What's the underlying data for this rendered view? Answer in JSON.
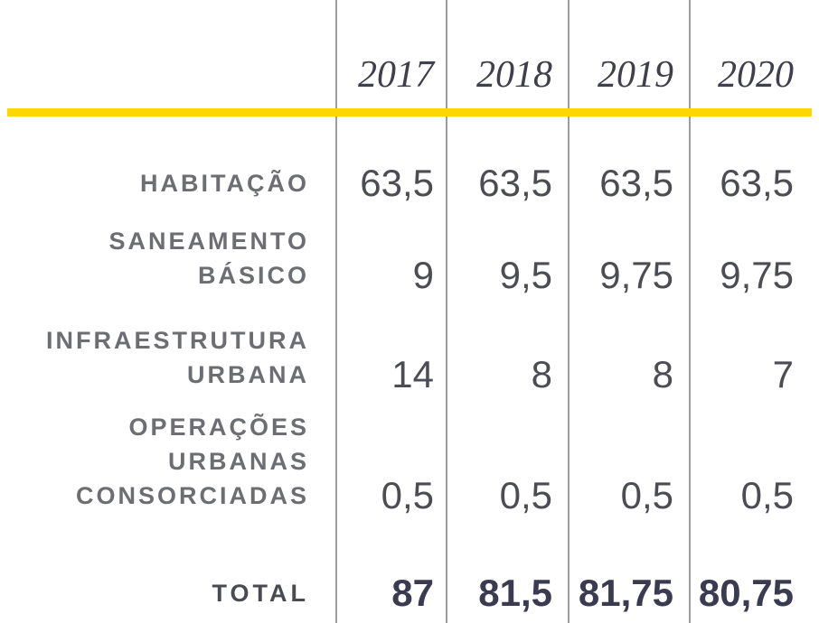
{
  "table": {
    "col_headers": [
      "2017",
      "2018",
      "2019",
      "2020"
    ],
    "rows": [
      {
        "label_lines": [
          "HABITAÇÃO"
        ],
        "values": [
          "63,5",
          "63,5",
          "63,5",
          "63,5"
        ]
      },
      {
        "label_lines": [
          "SANEAMENTO",
          "BÁSICO"
        ],
        "values": [
          "9",
          "9,5",
          "9,75",
          "9,75"
        ]
      },
      {
        "label_lines": [
          "INFRAESTRUTURA",
          "URBANA"
        ],
        "values": [
          "14",
          "8",
          "8",
          "7"
        ]
      },
      {
        "label_lines": [
          "OPERAÇÕES",
          "URBANAS",
          "CONSORCIADAS"
        ],
        "values": [
          "0,5",
          "0,5",
          "0,5",
          "0,5"
        ]
      },
      {
        "label_lines": [
          "TOTAL"
        ],
        "values": [
          "87",
          "81,5",
          "81,75",
          "80,75"
        ]
      }
    ]
  },
  "colors": {
    "accent_bar": "#FCD703",
    "column_divider": "#9E9EA0",
    "year_text": "#3F4049",
    "label_text": "#6D6E71",
    "value_text": "#4C4D52",
    "total_value_text": "#3A3A50"
  },
  "chart_data": {
    "type": "table",
    "columns": [
      "2017",
      "2018",
      "2019",
      "2020"
    ],
    "rows": [
      {
        "label": "HABITAÇÃO",
        "values": [
          63.5,
          63.5,
          63.5,
          63.5
        ]
      },
      {
        "label": "SANEAMENTO BÁSICO",
        "values": [
          9,
          9.5,
          9.75,
          9.75
        ]
      },
      {
        "label": "INFRAESTRUTURA URBANA",
        "values": [
          14,
          8,
          8,
          7
        ]
      },
      {
        "label": "OPERAÇÕES URBANAS CONSORCIADAS",
        "values": [
          0.5,
          0.5,
          0.5,
          0.5
        ]
      },
      {
        "label": "TOTAL",
        "values": [
          87,
          81.5,
          81.75,
          80.75
        ]
      }
    ],
    "number_format": "decimal comma (pt-BR)",
    "layout": "row labels right-aligned at left, year columns separated by full-height gray dividers, yellow accent bar under header, TOTAL row bold"
  }
}
